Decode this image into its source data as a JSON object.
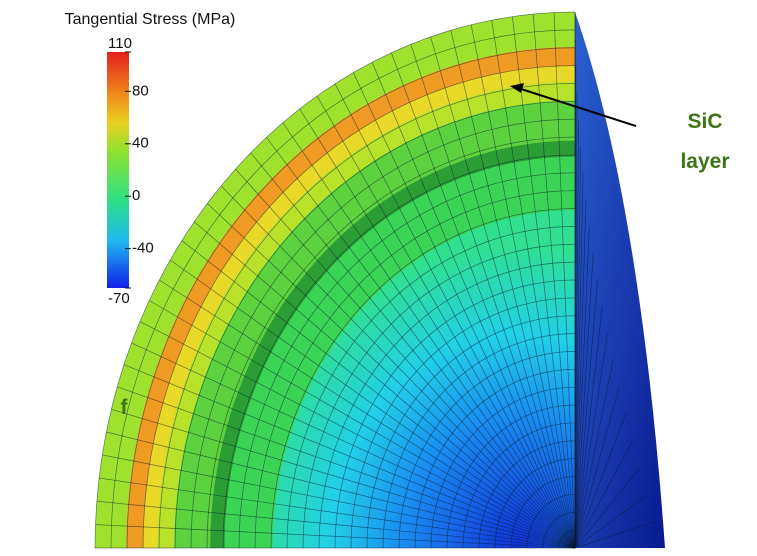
{
  "colorbar": {
    "title": "Tangential Stress (MPa)",
    "ticks": [
      110,
      80,
      40,
      0,
      -40,
      -70
    ]
  },
  "annotation": {
    "line1": "SiC",
    "line2": "layer"
  },
  "side_text": "f"
}
